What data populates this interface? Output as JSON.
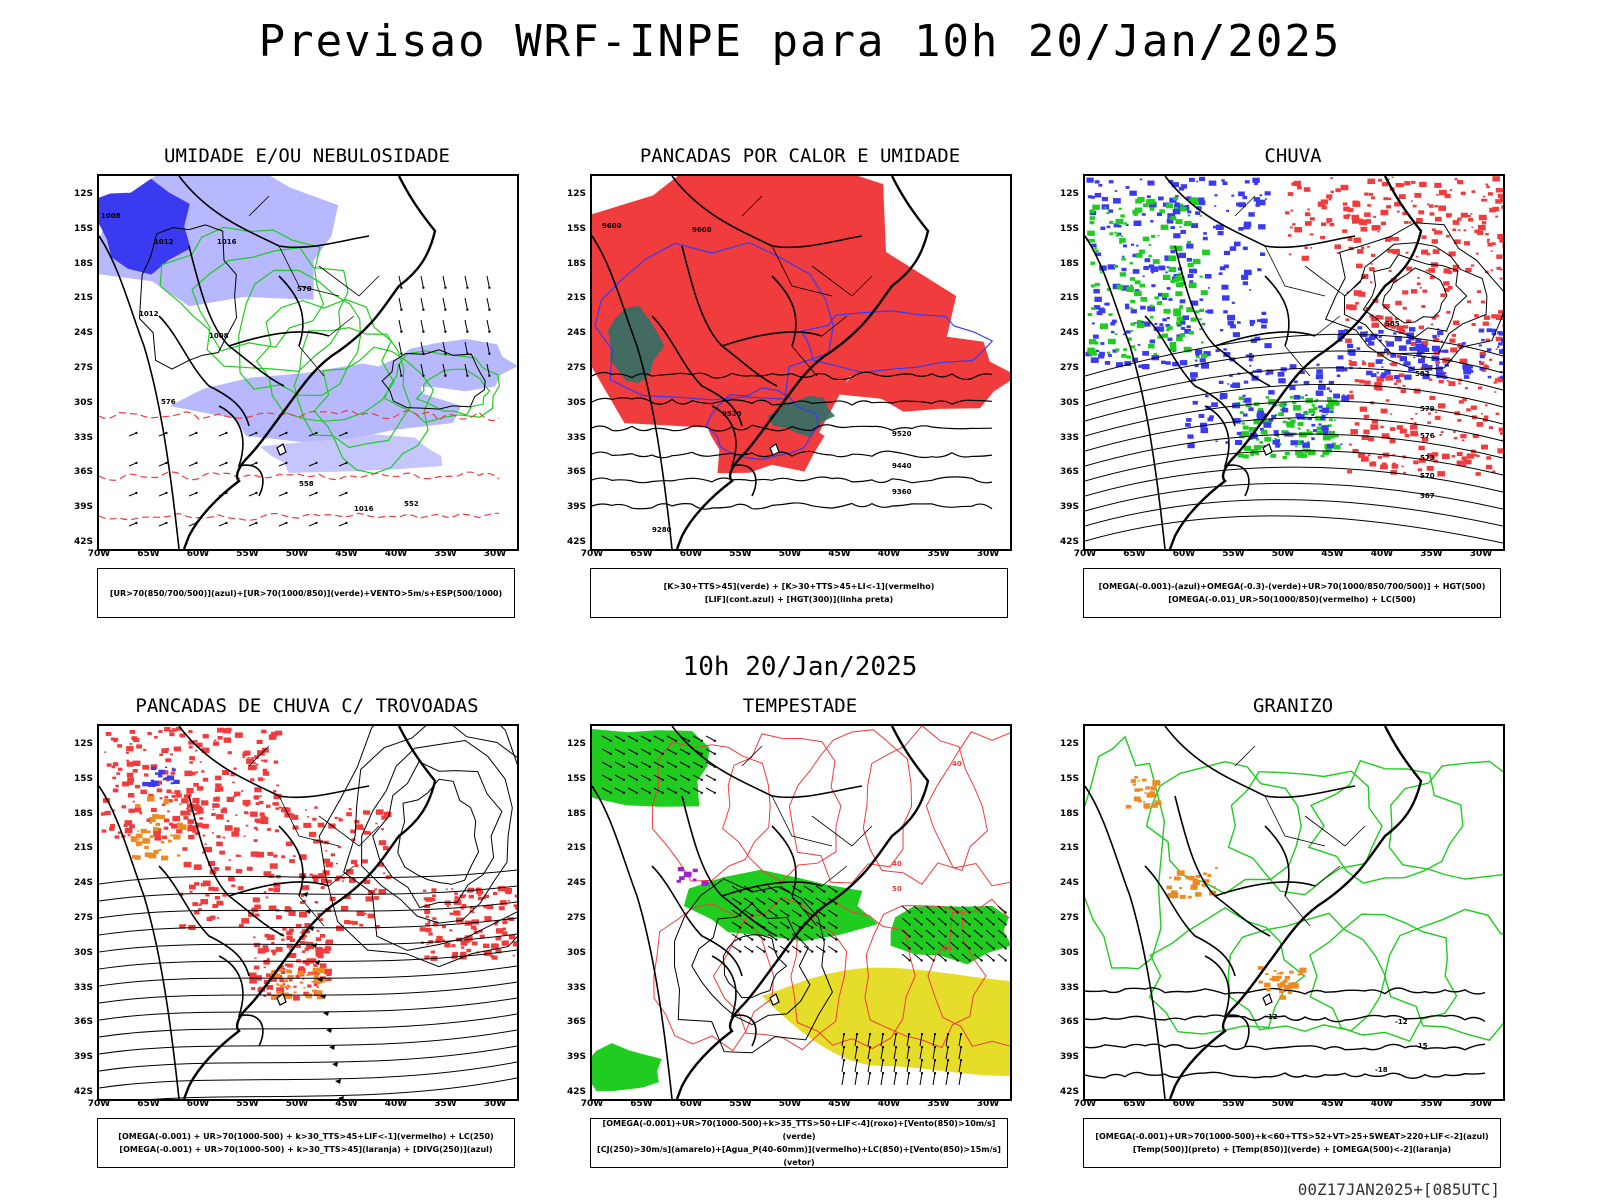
{
  "title": "Previsao WRF-INPE  para 10h 20/Jan/2025",
  "subtitle": "10h 20/Jan/2025",
  "footer": "00Z17JAN2025+[085UTC]",
  "lat_labels": [
    "12S",
    "15S",
    "18S",
    "21S",
    "24S",
    "27S",
    "30S",
    "33S",
    "36S",
    "39S",
    "42S"
  ],
  "lon_labels": [
    "70W",
    "65W",
    "60W",
    "55W",
    "50W",
    "45W",
    "40W",
    "35W",
    "30W"
  ],
  "panels": [
    {
      "title": "UMIDADE E/OU NEBULOSIDADE",
      "legend": [
        "[UR>70(850/700/500)](azul)+[UR>70(1000/850)](verde)+VENTO>5m/s+ESP(500/1000)"
      ],
      "contour_labels": [
        "1008",
        "1012",
        "1016",
        "1012",
        "1008",
        "1016",
        "570",
        "576",
        "558",
        "552"
      ]
    },
    {
      "title": "PANCADAS POR CALOR E UMIDADE",
      "legend": [
        "[K>30+TTS>45](verde)  +  [K>30+TTS>45+LI<-1](vermelho)",
        "[LIF](cont.azul)  +  [HGT(300)](linha preta)"
      ],
      "contour_labels": [
        "9600",
        "9600",
        "9520",
        "9520",
        "9440",
        "9360",
        "9280"
      ]
    },
    {
      "title": "CHUVA",
      "legend": [
        "[OMEGA(-0.001)-(azul)+OMEGA(-0.3)-(verde)+UR>70(1000/850/700/500)]  +  HGT(500)",
        "[OMEGA(-0.01)_UR>50(1000/850)(vermelho)  +  LC(500)"
      ],
      "contour_labels": [
        "585",
        "582",
        "579",
        "576",
        "573",
        "570",
        "567"
      ]
    },
    {
      "title": "PANCADAS DE CHUVA C/ TROVOADAS",
      "legend": [
        "[OMEGA(-0.001)  +  UR>70(1000-500)  +  k>30_TTS>45+LIF<-1](vermelho)  +  LC(250)",
        "[OMEGA(-0.001)  +  UR>70(1000-500)  +  k>30_TTS>45](laranja)  +  [DIVG(250)](azul)"
      ],
      "contour_labels": []
    },
    {
      "title": "TEMPESTADE",
      "legend": [
        "[OMEGA(-0.001)+UR>70(1000-500)+k>35_TTS>50+LIF<-4](roxo)+[Vento(850)>10m/s](verde)",
        "[CJ(250)>30m/s](amarelo)+[Agua_P(40-60mm)](vermelho)+LC(850)+[Vento(850)>15m/s](vetor)"
      ],
      "contour_labels": [
        "40",
        "40",
        "50",
        "40"
      ]
    },
    {
      "title": "GRANIZO",
      "legend": [
        "[OMEGA(-0.001)+UR>70(1000-500)+k<60+TTS>52+VT>25+SWEAT>220+LIF<-2](azul)",
        "[Temp(500)](preto)  +  [Temp(850)](verde)  +  [OMEGA(500)<-2](laranja)"
      ],
      "contour_labels": [
        "-12",
        "-12",
        "-15",
        "-18"
      ]
    }
  ],
  "colors": {
    "blue": "#3a3af0",
    "lightblue": "#b8b8ff",
    "green": "#1fcc1f",
    "red": "#f03c3c",
    "orange": "#ee8a22",
    "yellow": "#e6dc2a",
    "teal": "#2f6f66",
    "purple": "#a020d0"
  }
}
